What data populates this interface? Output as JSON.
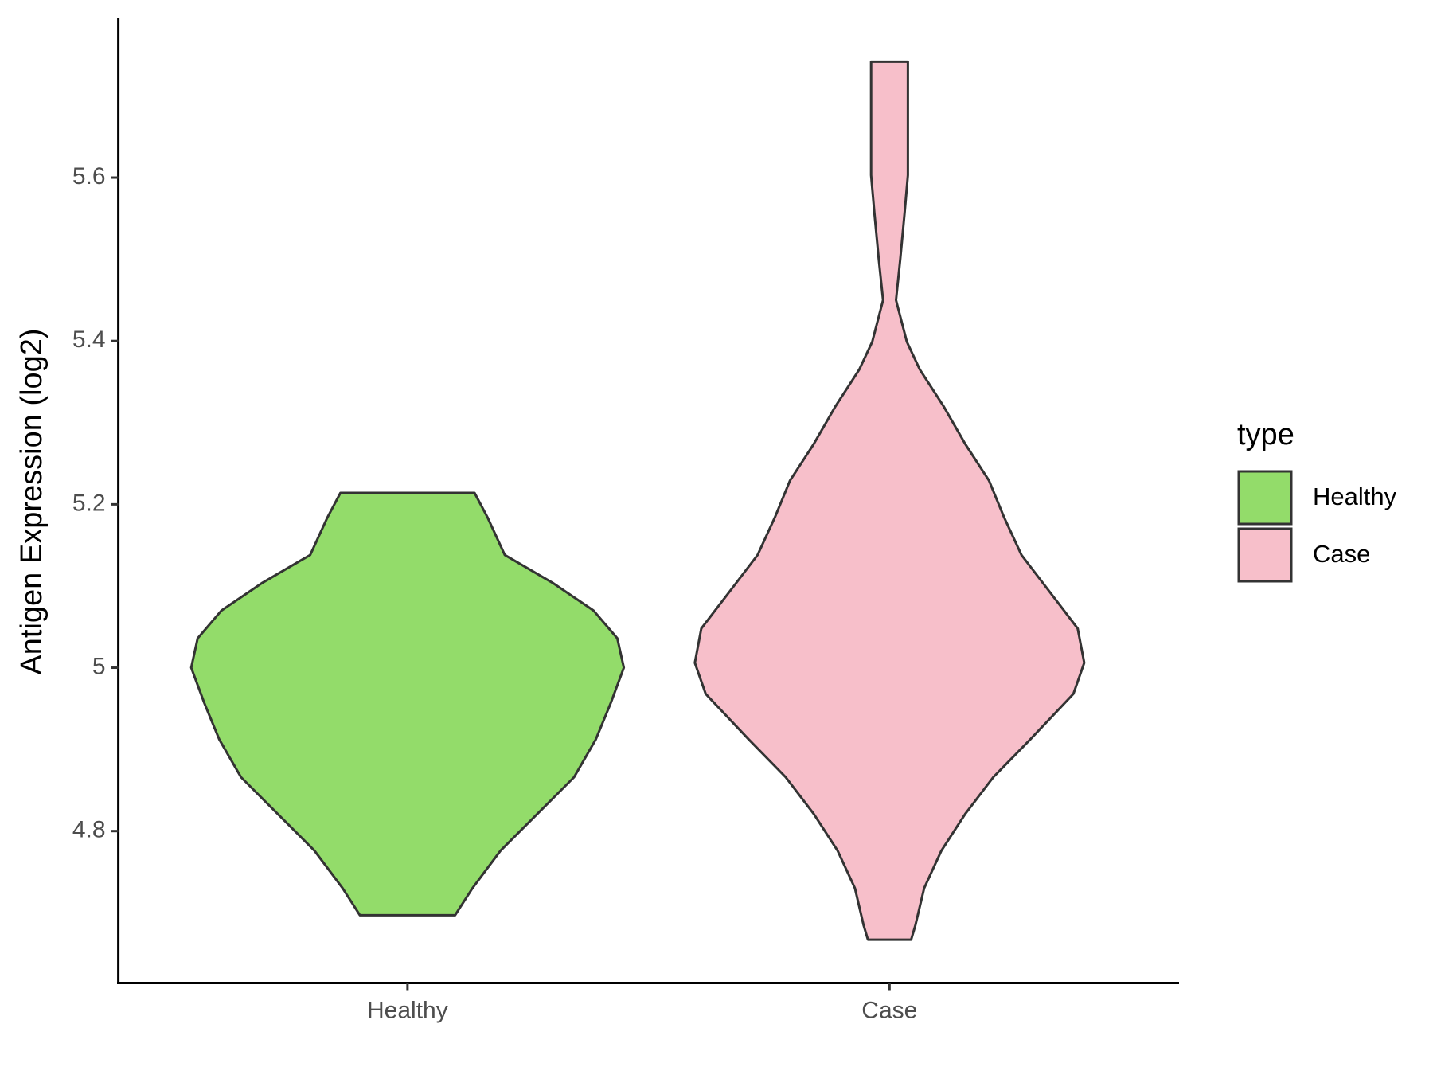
{
  "chart_data": {
    "type": "violin",
    "y_label": "Antigen Expression (log2)",
    "categories": [
      "Healthy",
      "Case"
    ],
    "legend_title": "type",
    "legend_position": "right",
    "ylim": [
      4.614,
      5.795
    ],
    "yticks": [
      4.8,
      5.0,
      5.2,
      5.4,
      5.6
    ],
    "grid": false,
    "series": [
      {
        "name": "Healthy",
        "color": "#93dc6a",
        "y": [
          5.214,
          5.184,
          5.138,
          5.104,
          5.07,
          5.036,
          5.0,
          4.957,
          4.912,
          4.866,
          4.821,
          4.776,
          4.73,
          4.697
        ],
        "density": [
          0.31,
          0.37,
          0.45,
          0.67,
          0.86,
          0.97,
          1,
          0.94,
          0.87,
          0.77,
          0.6,
          0.43,
          0.3,
          0.22
        ]
      },
      {
        "name": "Case",
        "color": "#f7bfca",
        "y": [
          5.742,
          5.705,
          5.603,
          5.557,
          5.501,
          5.45,
          5.399,
          5.365,
          5.32,
          5.274,
          5.229,
          5.184,
          5.138,
          5.093,
          5.048,
          5.006,
          4.968,
          4.912,
          4.866,
          4.821,
          4.776,
          4.73,
          4.685,
          4.667
        ],
        "density": [
          0.085,
          0.085,
          0.085,
          0.07,
          0.05,
          0.03,
          0.08,
          0.14,
          0.25,
          0.35,
          0.46,
          0.53,
          0.61,
          0.74,
          0.87,
          0.9,
          0.85,
          0.65,
          0.48,
          0.35,
          0.24,
          0.16,
          0.12,
          0.1
        ]
      }
    ]
  }
}
